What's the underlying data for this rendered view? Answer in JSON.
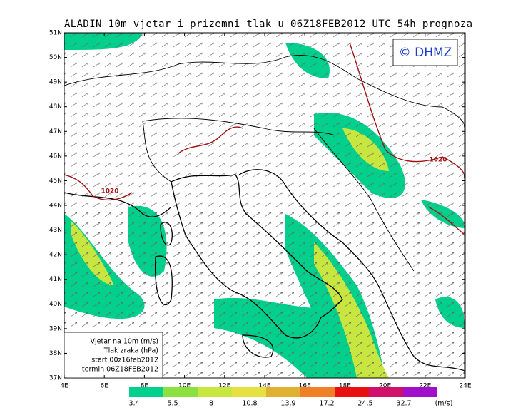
{
  "title": "ALADIN 10m vjetar i prizemni tlak u 06Z18FEB2012 UTC 54h prognoza",
  "logo": "© DHMZ",
  "lat_labels": [
    "51N",
    "50N",
    "49N",
    "48N",
    "47N",
    "46N",
    "45N",
    "44N",
    "43N",
    "42N",
    "41N",
    "40N",
    "39N",
    "38N",
    "37N"
  ],
  "lon_labels": [
    "4E",
    "6E",
    "8E",
    "10E",
    "12E",
    "14E",
    "16E",
    "18E",
    "20E",
    "22E",
    "24E"
  ],
  "isobar_labels": [
    "1020",
    "1020"
  ],
  "legend": [
    "Vjetar na 10m (m/s)",
    "Tlak zraka (hPa)",
    "start 00z16feb2012",
    "termin 06Z18FEB2012"
  ],
  "color_scale": {
    "labels": [
      3.4,
      5.5,
      8,
      10.8,
      13.9,
      17.2,
      24.5,
      32.7
    ],
    "unit": "(m/s)",
    "colors": [
      "#00d08c",
      "#8ce040",
      "#c8e640",
      "#e6e040",
      "#e0b030",
      "#f08028",
      "#e81010",
      "#d0106a",
      "#a010c8"
    ]
  }
}
